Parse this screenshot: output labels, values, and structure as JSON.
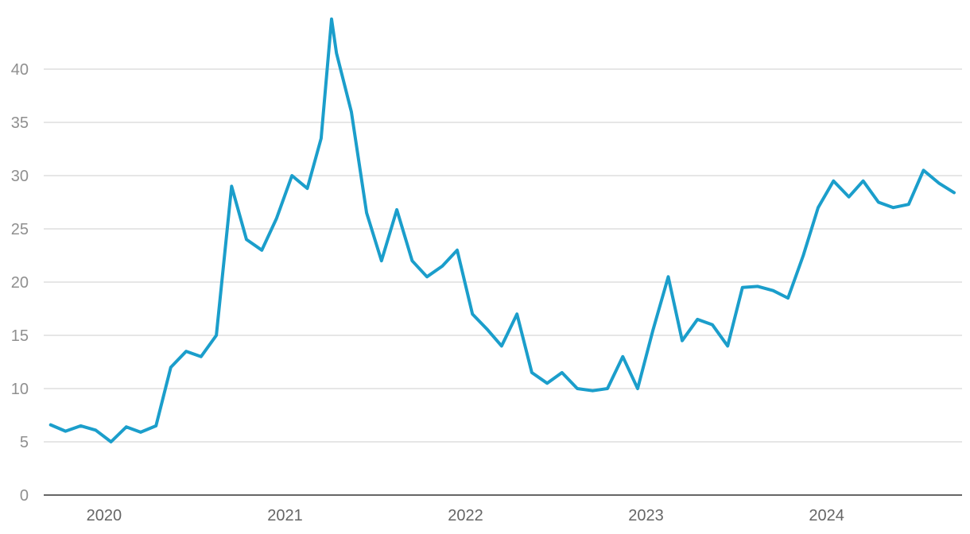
{
  "chart_data": {
    "type": "line",
    "title": "",
    "xlabel": "",
    "ylabel": "",
    "ylim": [
      0,
      45
    ],
    "xlim": [
      "2019-09-01",
      "2024-10-01"
    ],
    "y_ticks": [
      0,
      5,
      10,
      15,
      20,
      25,
      30,
      35,
      40
    ],
    "x_ticks": [
      {
        "label": "2020",
        "date": "2020-01-01"
      },
      {
        "label": "2021",
        "date": "2021-01-01"
      },
      {
        "label": "2022",
        "date": "2022-01-01"
      },
      {
        "label": "2023",
        "date": "2023-01-01"
      },
      {
        "label": "2024",
        "date": "2024-01-01"
      }
    ],
    "grid": "horizontal",
    "colors": {
      "line": "#1b9ecb",
      "grid": "#dddddd",
      "axis": "#333333"
    },
    "series": [
      {
        "x": [
          "2019-09-15",
          "2019-10-15",
          "2019-11-15",
          "2019-12-15",
          "2020-01-15",
          "2020-02-15",
          "2020-03-15",
          "2020-04-15",
          "2020-05-15",
          "2020-06-15",
          "2020-07-15",
          "2020-08-15",
          "2020-09-15",
          "2020-10-15",
          "2020-11-15",
          "2020-12-15",
          "2021-01-15",
          "2021-02-15",
          "2021-03-15",
          "2021-04-05",
          "2021-04-15",
          "2021-05-15",
          "2021-06-15",
          "2021-07-15",
          "2021-08-15",
          "2021-09-15",
          "2021-10-15",
          "2021-11-15",
          "2021-12-15",
          "2022-01-15",
          "2022-02-15",
          "2022-03-15",
          "2022-04-15",
          "2022-05-15",
          "2022-06-15",
          "2022-07-15",
          "2022-08-15",
          "2022-09-15",
          "2022-10-15",
          "2022-11-15",
          "2022-12-15",
          "2023-01-15",
          "2023-02-15",
          "2023-03-15",
          "2023-04-15",
          "2023-05-15",
          "2023-06-15",
          "2023-07-15",
          "2023-08-15",
          "2023-09-15",
          "2023-10-15",
          "2023-11-15",
          "2023-12-15",
          "2024-01-15",
          "2024-02-15",
          "2024-03-15",
          "2024-04-15",
          "2024-05-15",
          "2024-06-15",
          "2024-07-15",
          "2024-08-15",
          "2024-09-15"
        ],
        "y": [
          6.6,
          6.0,
          6.5,
          6.1,
          5.0,
          6.4,
          5.9,
          6.5,
          12.0,
          13.5,
          13.0,
          15.0,
          29.0,
          24.0,
          23.0,
          26.0,
          30.0,
          28.8,
          33.5,
          44.7,
          41.5,
          36.0,
          26.5,
          22.0,
          26.8,
          22.0,
          20.5,
          21.5,
          23.0,
          17.0,
          15.5,
          14.0,
          17.0,
          11.5,
          10.5,
          11.5,
          10.0,
          9.8,
          10.0,
          13.0,
          10.0,
          15.5,
          20.5,
          14.5,
          16.5,
          16.0,
          14.0,
          19.5,
          19.6,
          19.2,
          18.5,
          22.5,
          27.0,
          29.5,
          28.0,
          29.5,
          27.5,
          27.0,
          27.3,
          30.5,
          29.3,
          28.4
        ]
      }
    ]
  }
}
